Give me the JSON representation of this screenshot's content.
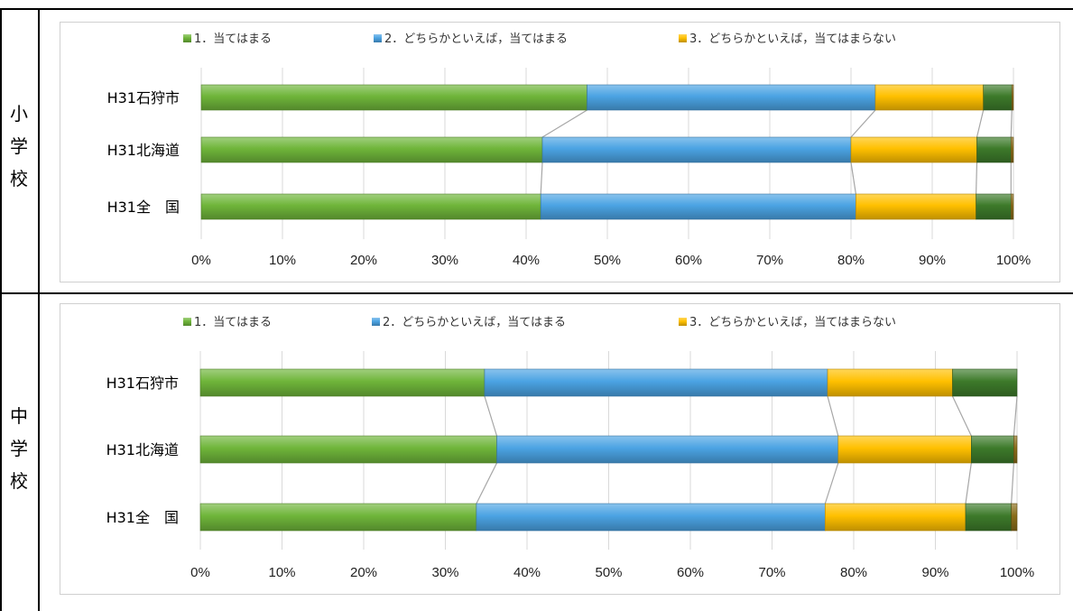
{
  "sections": [
    {
      "label_chars": [
        "小",
        "学",
        "校"
      ],
      "chart_data": {
        "type": "bar",
        "orientation": "horizontal",
        "stacked": true,
        "percent": true,
        "categories": [
          "H31石狩市",
          "H31北海道",
          "H31全　国"
        ],
        "series": [
          {
            "name": "1．当てはまる",
            "color": "#6fb53a",
            "values": [
              47.5,
              42.0,
              41.8
            ]
          },
          {
            "name": "2．どちらかといえば，当てはまる",
            "color": "#4ba3e3",
            "values": [
              35.5,
              38.0,
              38.8
            ]
          },
          {
            "name": "3．どちらかといえば，当てはまらない",
            "color": "#ffc000",
            "values": [
              13.3,
              15.5,
              14.8
            ]
          },
          {
            "name": "",
            "color": "#3d7a2a",
            "values": [
              3.5,
              4.2,
              4.3
            ]
          },
          {
            "name": "",
            "color": "#8a6d1a",
            "values": [
              0.2,
              0.3,
              0.3
            ]
          }
        ],
        "xticks": [
          "0%",
          "10%",
          "20%",
          "30%",
          "40%",
          "50%",
          "60%",
          "70%",
          "80%",
          "90%",
          "100%"
        ],
        "xlim": [
          0,
          100
        ],
        "grid": true,
        "legend": "top"
      }
    },
    {
      "label_chars": [
        "中",
        "学",
        "校"
      ],
      "chart_data": {
        "type": "bar",
        "orientation": "horizontal",
        "stacked": true,
        "percent": true,
        "categories": [
          "H31石狩市",
          "H31北海道",
          "H31全　国"
        ],
        "series": [
          {
            "name": "1．当てはまる",
            "color": "#6fb53a",
            "values": [
              34.8,
              36.3,
              33.8
            ]
          },
          {
            "name": "2．どちらかといえば，当てはまる",
            "color": "#4ba3e3",
            "values": [
              42.0,
              41.8,
              42.7
            ]
          },
          {
            "name": "3．どちらかといえば，当てはまらない",
            "color": "#ffc000",
            "values": [
              15.3,
              16.3,
              17.2
            ]
          },
          {
            "name": "",
            "color": "#3d7a2a",
            "values": [
              7.9,
              5.2,
              5.6
            ]
          },
          {
            "name": "",
            "color": "#8a6d1a",
            "values": [
              0.0,
              0.4,
              0.7
            ]
          }
        ],
        "xticks": [
          "0%",
          "10%",
          "20%",
          "30%",
          "40%",
          "50%",
          "60%",
          "70%",
          "80%",
          "90%",
          "100%"
        ],
        "xlim": [
          0,
          100
        ],
        "grid": true,
        "legend": "top"
      }
    }
  ]
}
